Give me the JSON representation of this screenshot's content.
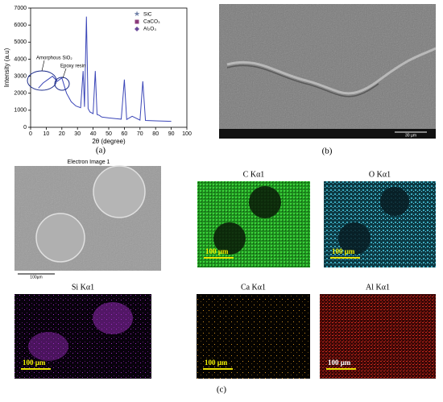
{
  "chart_data": {
    "type": "line",
    "xlabel": "2θ (degree)",
    "ylabel": "Intensity (a.u)",
    "panel_label": "(a)",
    "x": [
      5,
      8,
      11,
      14,
      17,
      20,
      23,
      26,
      29,
      32,
      33.6,
      34.5,
      35.7,
      36.8,
      38,
      40,
      41.4,
      42.5,
      44,
      45.5,
      50,
      55,
      58,
      60,
      61.5,
      65,
      70,
      71.8,
      73.5,
      80,
      90
    ],
    "values": [
      2300,
      2600,
      2800,
      3000,
      2700,
      2900,
      2000,
      1500,
      1250,
      1150,
      3300,
      1200,
      6500,
      1100,
      900,
      800,
      3300,
      750,
      700,
      600,
      550,
      500,
      480,
      2800,
      460,
      650,
      420,
      2700,
      400,
      380,
      350
    ],
    "color": "#3b46b8",
    "xlim": [
      0,
      100
    ],
    "xticks": [
      0,
      10,
      20,
      30,
      40,
      50,
      60,
      70,
      80,
      90,
      100
    ],
    "ylim": [
      0,
      7000
    ],
    "yticks": [
      0,
      1000,
      2000,
      3000,
      4000,
      5000,
      6000,
      7000
    ],
    "legend": [
      "SiC",
      "CaCO₃",
      "Al₂O₃"
    ],
    "annotations": [
      "Amorphous SiO₂",
      "Epoxy resin"
    ]
  },
  "sem": {
    "panel_label": "(b)",
    "scale": "30 µm"
  },
  "eds": {
    "panel_label": "(c)",
    "electron_image": {
      "title": "Electron Image 1",
      "scale": "100µm"
    },
    "maps": [
      {
        "title": "C Kα1",
        "scale": "100 µm"
      },
      {
        "title": "O Kα1",
        "scale": "100 µm"
      },
      {
        "title": "Si Kα1",
        "scale": "100 µm"
      },
      {
        "title": "Ca Kα1",
        "scale": "100 µm"
      },
      {
        "title": "Al Kα1",
        "scale": "100 µm"
      }
    ]
  }
}
